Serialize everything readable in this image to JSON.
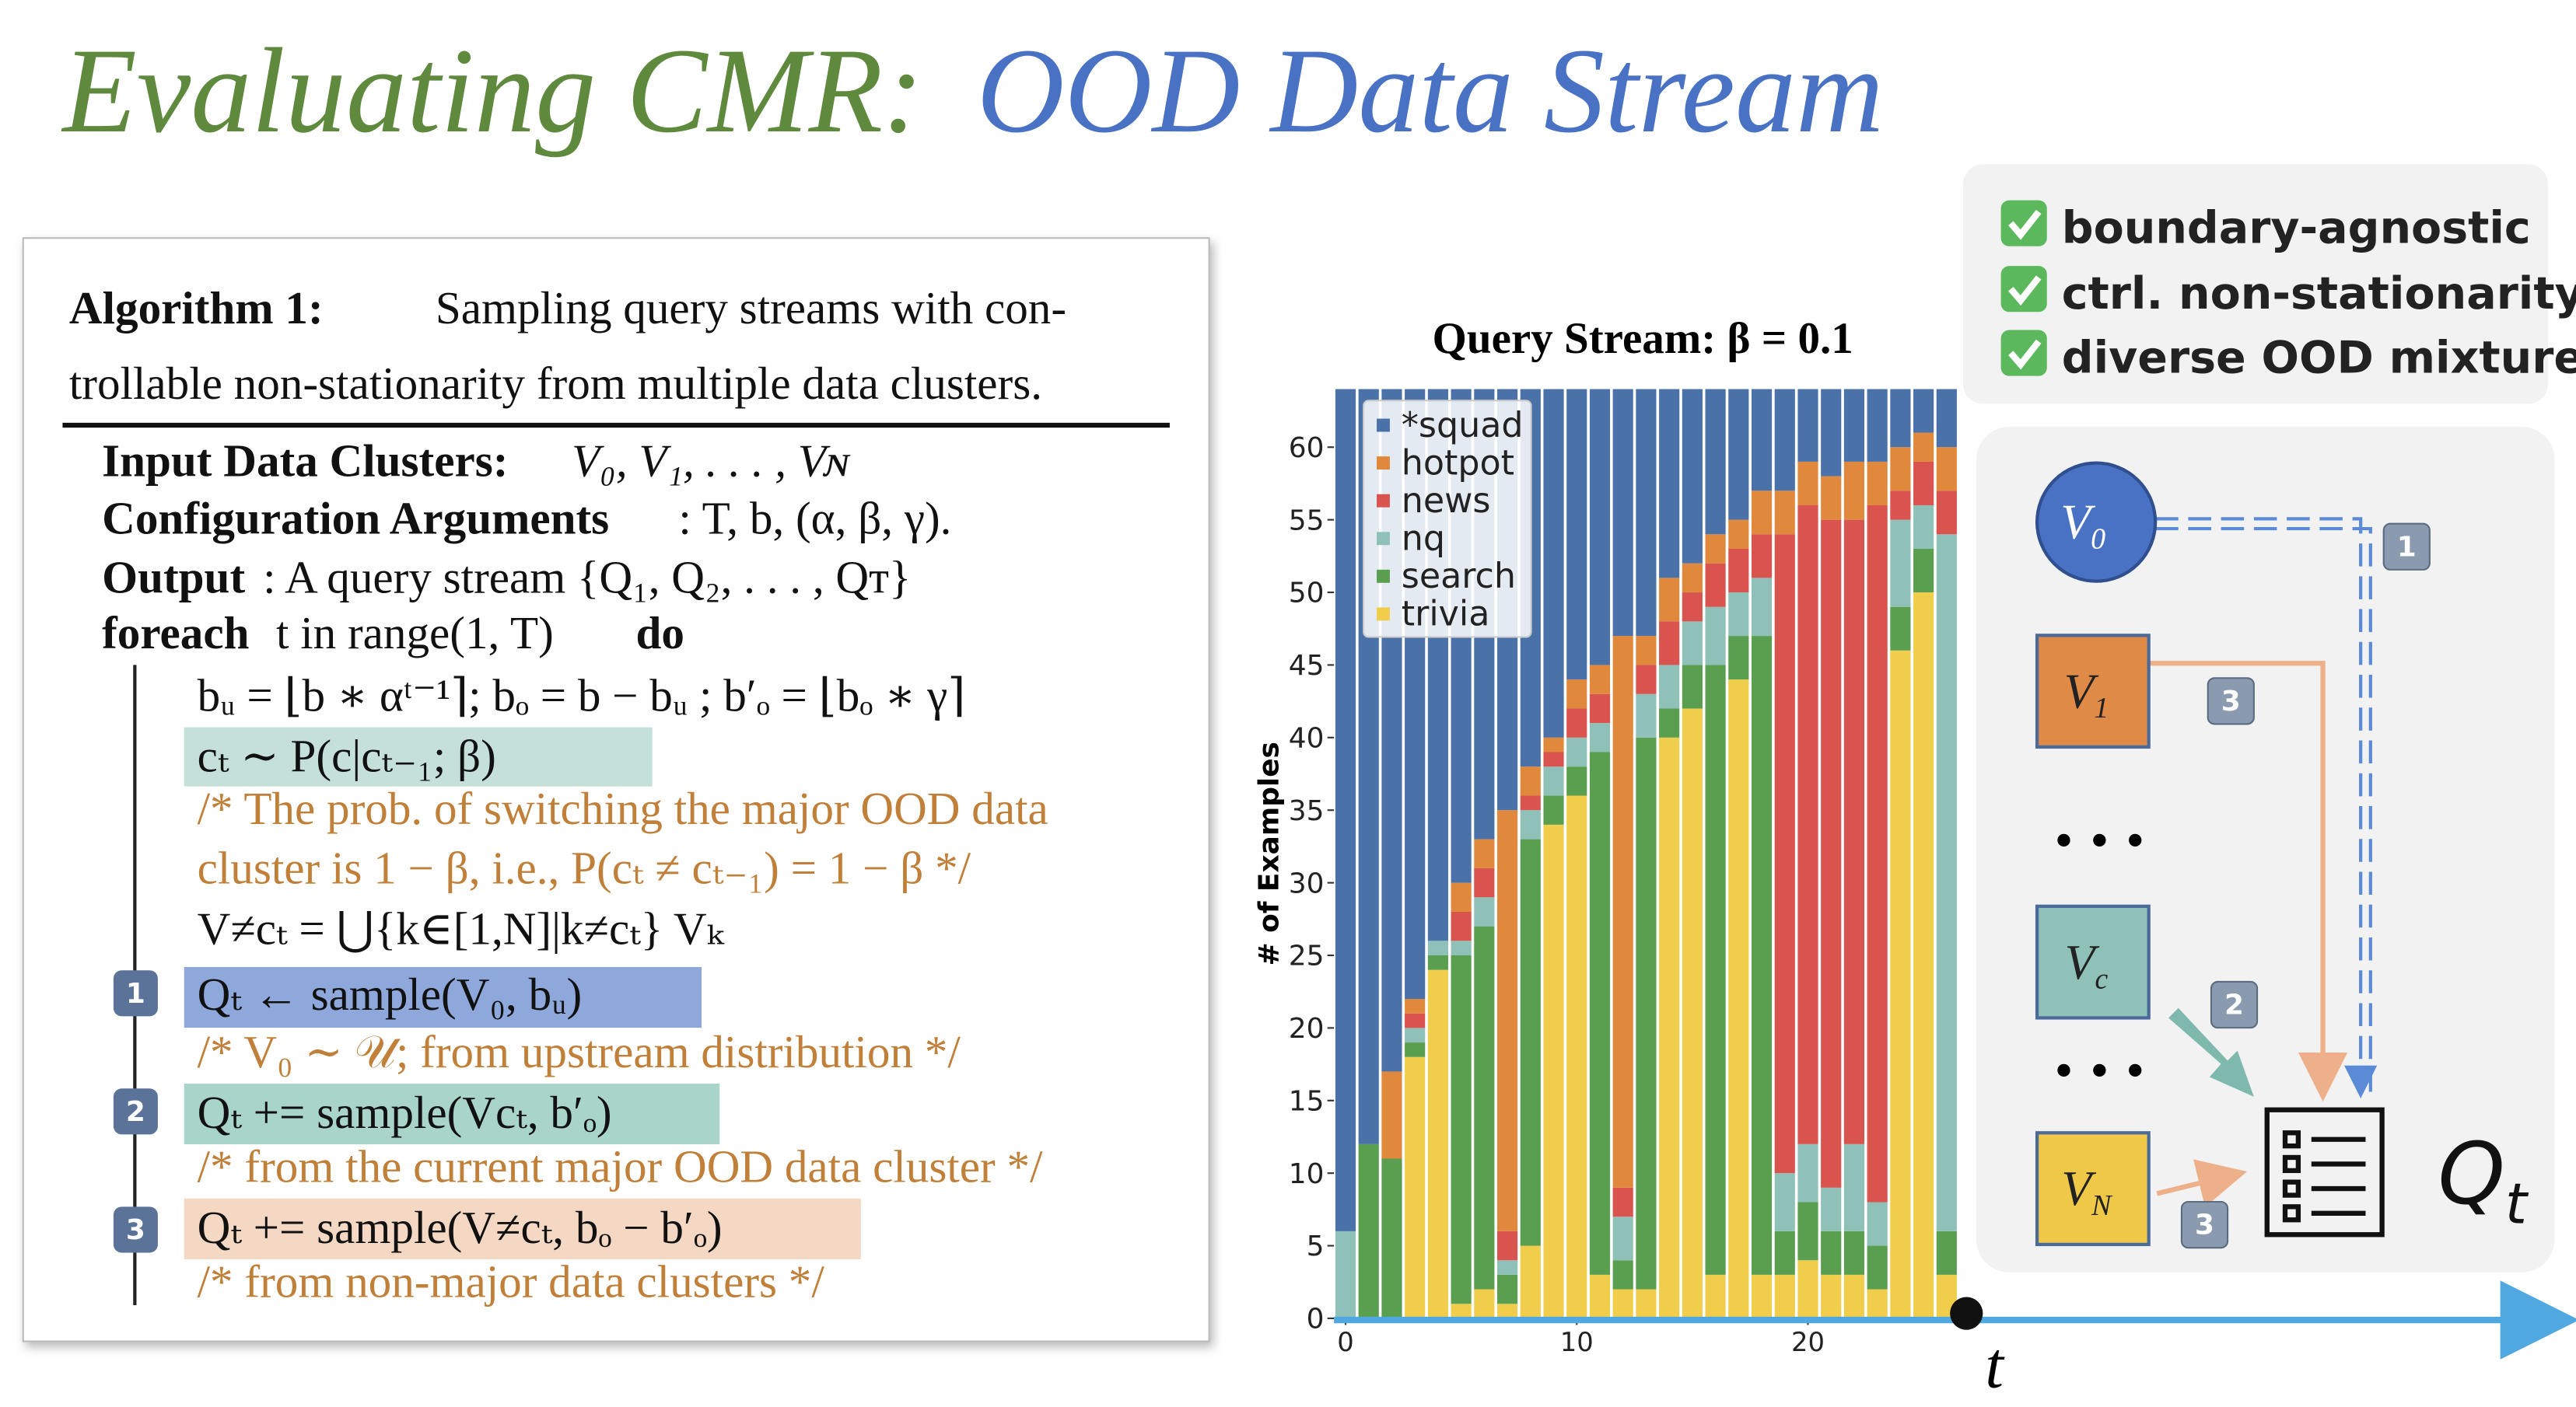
{
  "title": {
    "part1": "Evaluating CMR:",
    "part2": "OOD Data Stream"
  },
  "algorithm": {
    "label": "Algorithm 1:",
    "caption_lines": [
      "Sampling query streams with con-",
      "trollable non-stationarity from multiple data clusters."
    ],
    "inputs": [
      {
        "label": "Input Data Clusters:",
        "text": "V₀, V₁, . . . , Vɴ"
      },
      {
        "label": "Configuration Arguments",
        "text": ": T, b, (α, β, γ)."
      },
      {
        "label": "Output",
        "text": ": A query stream {Q₁, Q₂, . . . , Qᴛ}"
      },
      {
        "label": "foreach",
        "text": "t in range(1, T)",
        "end": "do"
      }
    ],
    "lines": [
      "bᵤ = ⌊b ∗ αᵗ⁻¹⌉; bₒ = b − bᵤ ; b′ₒ = ⌊bₒ ∗ γ⌉",
      "cₜ ∼ P(c|cₜ₋₁; β)",
      "/*  The prob. of switching the major OOD data",
      "cluster is 1 − β, i.e., P(cₜ ≠ cₜ₋₁) = 1 − β */",
      "V≠cₜ = ⋃{k∈[1,N]|k≠cₜ} Vₖ"
    ],
    "steps": [
      {
        "badge": "1",
        "code": "Qₜ  ← sample(V₀, bᵤ)",
        "comment": "/* V₀ ∼ 𝒰; from upstream distribution */"
      },
      {
        "badge": "2",
        "code": "Qₜ += sample(Vcₜ, b′ₒ)",
        "comment": "/* from the current major OOD data cluster */"
      },
      {
        "badge": "3",
        "code": "Qₜ += sample(V≠cₜ, bₒ − b′ₒ)",
        "comment": "/* from non-major data clusters */"
      }
    ]
  },
  "chart_data": {
    "type": "stacked_bar",
    "title": "Query Stream:  β = 0.1",
    "y_label": "# of Examples",
    "x": [
      0,
      1,
      2,
      3,
      4,
      5,
      6,
      7,
      8,
      9,
      10,
      11,
      12,
      13,
      14,
      15,
      16,
      17,
      18,
      19,
      20,
      21,
      22,
      23,
      24,
      25,
      26
    ],
    "xlim": [
      -0.5,
      26.5
    ],
    "xticks": [
      0,
      10,
      20
    ],
    "ylim": [
      0,
      64
    ],
    "yticks": [
      0,
      5,
      10,
      15,
      20,
      25,
      30,
      35,
      40,
      45,
      50,
      55,
      60
    ],
    "legend": "upper left",
    "series": [
      {
        "name": "*squad",
        "color": "#4a72a8",
        "values": [
          58,
          52,
          47,
          42,
          38,
          34,
          31,
          29,
          26,
          24,
          20,
          19,
          17,
          17,
          13,
          12,
          10,
          9,
          7,
          7,
          5,
          6,
          5,
          5,
          4,
          3,
          4
        ]
      },
      {
        "name": "hotpot",
        "color": "#e0893c",
        "values": [
          0,
          0,
          6,
          1,
          0,
          2,
          2,
          29,
          2,
          1,
          2,
          2,
          38,
          2,
          3,
          2,
          2,
          2,
          3,
          3,
          3,
          3,
          4,
          3,
          3,
          2,
          3
        ]
      },
      {
        "name": "news",
        "color": "#d9534f",
        "values": [
          0,
          0,
          0,
          1,
          0,
          2,
          2,
          2,
          1,
          1,
          2,
          2,
          2,
          2,
          3,
          2,
          3,
          3,
          3,
          44,
          44,
          46,
          43,
          48,
          2,
          3,
          3
        ]
      },
      {
        "name": "nq",
        "color": "#8fc1b9",
        "values": [
          6,
          0,
          0,
          1,
          1,
          1,
          2,
          1,
          2,
          2,
          2,
          2,
          3,
          3,
          3,
          3,
          4,
          3,
          4,
          4,
          4,
          3,
          6,
          3,
          6,
          3,
          48
        ]
      },
      {
        "name": "search",
        "color": "#5a9e4f",
        "values": [
          0,
          12,
          11,
          1,
          1,
          24,
          25,
          2,
          28,
          2,
          2,
          36,
          2,
          38,
          2,
          3,
          42,
          3,
          44,
          3,
          4,
          3,
          3,
          3,
          3,
          3,
          3
        ]
      },
      {
        "name": "trivia",
        "color": "#f0cd4b",
        "values": [
          0,
          0,
          0,
          18,
          24,
          1,
          2,
          1,
          5,
          34,
          36,
          3,
          2,
          2,
          40,
          42,
          3,
          44,
          3,
          3,
          4,
          3,
          3,
          2,
          46,
          50,
          3
        ]
      }
    ]
  },
  "features": [
    "boundary-agnostic",
    "ctrl. non-stationarity",
    "diverse OOD mixture"
  ],
  "diagram": {
    "nodes": [
      {
        "base": "V",
        "sub": "0"
      },
      {
        "base": "V",
        "sub": "1"
      },
      {
        "base": "V",
        "sub": "c"
      },
      {
        "base": "V",
        "sub": "N"
      }
    ],
    "ellipses": [
      "• • •",
      "• • •"
    ],
    "output": {
      "base": "Q",
      "sub": "t"
    },
    "badges": [
      "1",
      "3",
      "2",
      "3"
    ],
    "axis_label": "t"
  }
}
